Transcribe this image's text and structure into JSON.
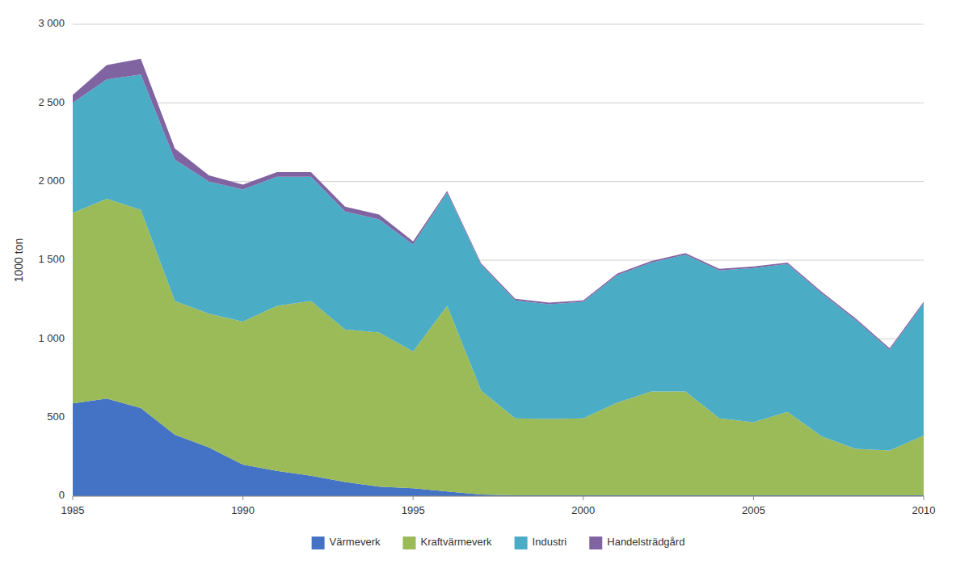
{
  "chart_data": {
    "type": "area",
    "stacked": true,
    "y_label": "1000 ton",
    "x": [
      1985,
      1986,
      1987,
      1988,
      1989,
      1990,
      1991,
      1992,
      1993,
      1994,
      1995,
      1996,
      1997,
      1998,
      1999,
      2000,
      2001,
      2002,
      2003,
      2004,
      2005,
      2006,
      2007,
      2008,
      2009,
      2010
    ],
    "series": [
      {
        "name": "Värmeverk",
        "color": "#4472C4",
        "values": [
          590,
          620,
          560,
          390,
          310,
          200,
          160,
          130,
          90,
          60,
          50,
          30,
          10,
          5,
          5,
          5,
          5,
          5,
          5,
          5,
          5,
          5,
          5,
          5,
          5,
          5
        ]
      },
      {
        "name": "Kraftvärmeverk",
        "color": "#9BBB59",
        "values": [
          1210,
          1270,
          1260,
          850,
          850,
          910,
          1050,
          1110,
          970,
          980,
          870,
          1180,
          660,
          490,
          485,
          490,
          590,
          660,
          660,
          490,
          465,
          530,
          375,
          295,
          285,
          380
        ]
      },
      {
        "name": "Industri",
        "color": "#4BACC6",
        "values": [
          700,
          760,
          860,
          900,
          840,
          840,
          820,
          790,
          750,
          720,
          680,
          720,
          800,
          750,
          730,
          740,
          810,
          820,
          870,
          940,
          980,
          940,
          910,
          820,
          640,
          840
        ]
      },
      {
        "name": "Handelsträdgård",
        "color": "#8064A2",
        "values": [
          50,
          90,
          100,
          70,
          40,
          30,
          30,
          30,
          30,
          30,
          20,
          10,
          10,
          10,
          10,
          10,
          10,
          10,
          10,
          10,
          10,
          10,
          10,
          10,
          10,
          10
        ]
      }
    ],
    "xlim": [
      1985,
      2010
    ],
    "xticks": [
      1985,
      1990,
      1995,
      2000,
      2005,
      2010
    ],
    "ylim": [
      0,
      3000
    ],
    "yticks": [
      0,
      500,
      {
        "value": 1000,
        "label": "1 000"
      },
      {
        "value": 1500,
        "label": "1 500"
      },
      {
        "value": 2000,
        "label": "2 000"
      },
      {
        "value": 2500,
        "label": "2 500"
      },
      {
        "value": 3000,
        "label": "3 000"
      }
    ],
    "grid": true,
    "legend": "bottom"
  }
}
